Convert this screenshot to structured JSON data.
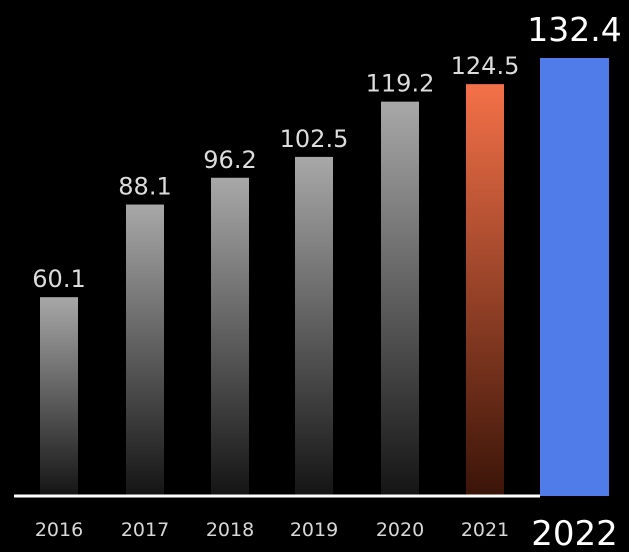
{
  "chart_data": {
    "type": "bar",
    "categories": [
      "2016",
      "2017",
      "2018",
      "2019",
      "2020",
      "2021",
      "2022"
    ],
    "values": [
      60.1,
      88.1,
      96.2,
      102.5,
      119.2,
      124.5,
      132.4
    ],
    "value_labels": [
      "60.1",
      "88.1",
      "96.2",
      "102.5",
      "119.2",
      "124.5",
      "132.4"
    ],
    "title": "",
    "xlabel": "",
    "ylabel": "",
    "ylim": [
      0,
      132.4
    ],
    "grid": false,
    "legend": "none",
    "colors": {
      "default_bar_top": "#a8a8a8",
      "default_bar_bottom": "#141414",
      "previous_year_top": "#f47148",
      "previous_year_bottom": "#3a1408",
      "highlight_bar": "#4f7ce8",
      "baseline": "#ffffff",
      "background": "#000000"
    },
    "bar_styles": [
      "default",
      "default",
      "default",
      "default",
      "default",
      "previous",
      "highlight"
    ]
  }
}
